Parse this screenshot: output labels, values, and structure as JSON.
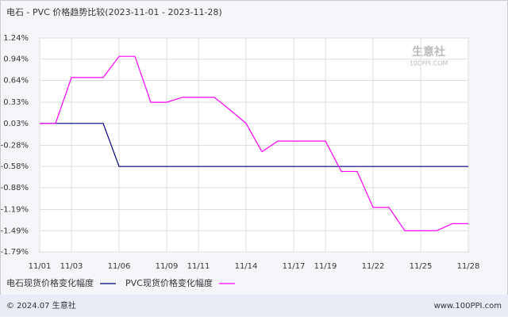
{
  "chart_data": {
    "type": "line",
    "title": "电石 - PVC 价格趋势比较(2023-11-01 - 2023-11-28)",
    "categories": [
      "11/01",
      null,
      "11/03",
      null,
      null,
      "11/06",
      null,
      null,
      "11/09",
      null,
      "11/11",
      null,
      null,
      "11/14",
      null,
      null,
      "11/17",
      null,
      "11/19",
      null,
      null,
      "11/22",
      null,
      null,
      "11/25",
      null,
      null,
      "11/28"
    ],
    "series": [
      {
        "name": "电石现货价格变化幅度",
        "color": "#000080",
        "values": [
          0.03,
          0.03,
          0.03,
          0.03,
          0.03,
          -0.58,
          -0.58,
          -0.58,
          -0.58,
          -0.58,
          -0.58,
          -0.58,
          -0.58,
          -0.58,
          -0.58,
          -0.58,
          -0.58,
          -0.58,
          -0.58,
          -0.58,
          -0.58,
          -0.58,
          -0.58,
          -0.58,
          -0.58,
          -0.58,
          -0.58,
          -0.58
        ]
      },
      {
        "name": "PVC现货价格变化幅度",
        "color": "#ff00ff",
        "values": [
          0.03,
          0.03,
          0.68,
          0.68,
          0.68,
          0.98,
          0.98,
          0.33,
          0.33,
          0.4,
          0.4,
          0.4,
          0.22,
          0.03,
          -0.37,
          -0.22,
          -0.22,
          -0.22,
          -0.22,
          -0.65,
          -0.65,
          -1.16,
          -1.16,
          -1.49,
          -1.49,
          -1.49,
          -1.39,
          -1.39
        ]
      }
    ],
    "ylim": [
      -1.79,
      1.24
    ],
    "yticks": [
      {
        "value": 1.24,
        "label": "1.24%"
      },
      {
        "value": 0.94,
        "label": "0.94%"
      },
      {
        "value": 0.64,
        "label": "0.64%"
      },
      {
        "value": 0.33,
        "label": "0.33%"
      },
      {
        "value": 0.03,
        "label": "0.03%"
      },
      {
        "value": -0.28,
        "label": "-0.28%"
      },
      {
        "value": -0.58,
        "label": "-0.58%"
      },
      {
        "value": -0.88,
        "label": "-0.88%"
      },
      {
        "value": -1.19,
        "label": "-1.19%"
      },
      {
        "value": -1.49,
        "label": "-1.49%"
      },
      {
        "value": -1.79,
        "label": "-1.79%"
      }
    ],
    "grid": true,
    "watermark": {
      "name": "生意社",
      "site": "100PPI.COM"
    },
    "footer": {
      "copyright": "© 2024.07 生意社",
      "url": "www.100PPI.com"
    }
  }
}
